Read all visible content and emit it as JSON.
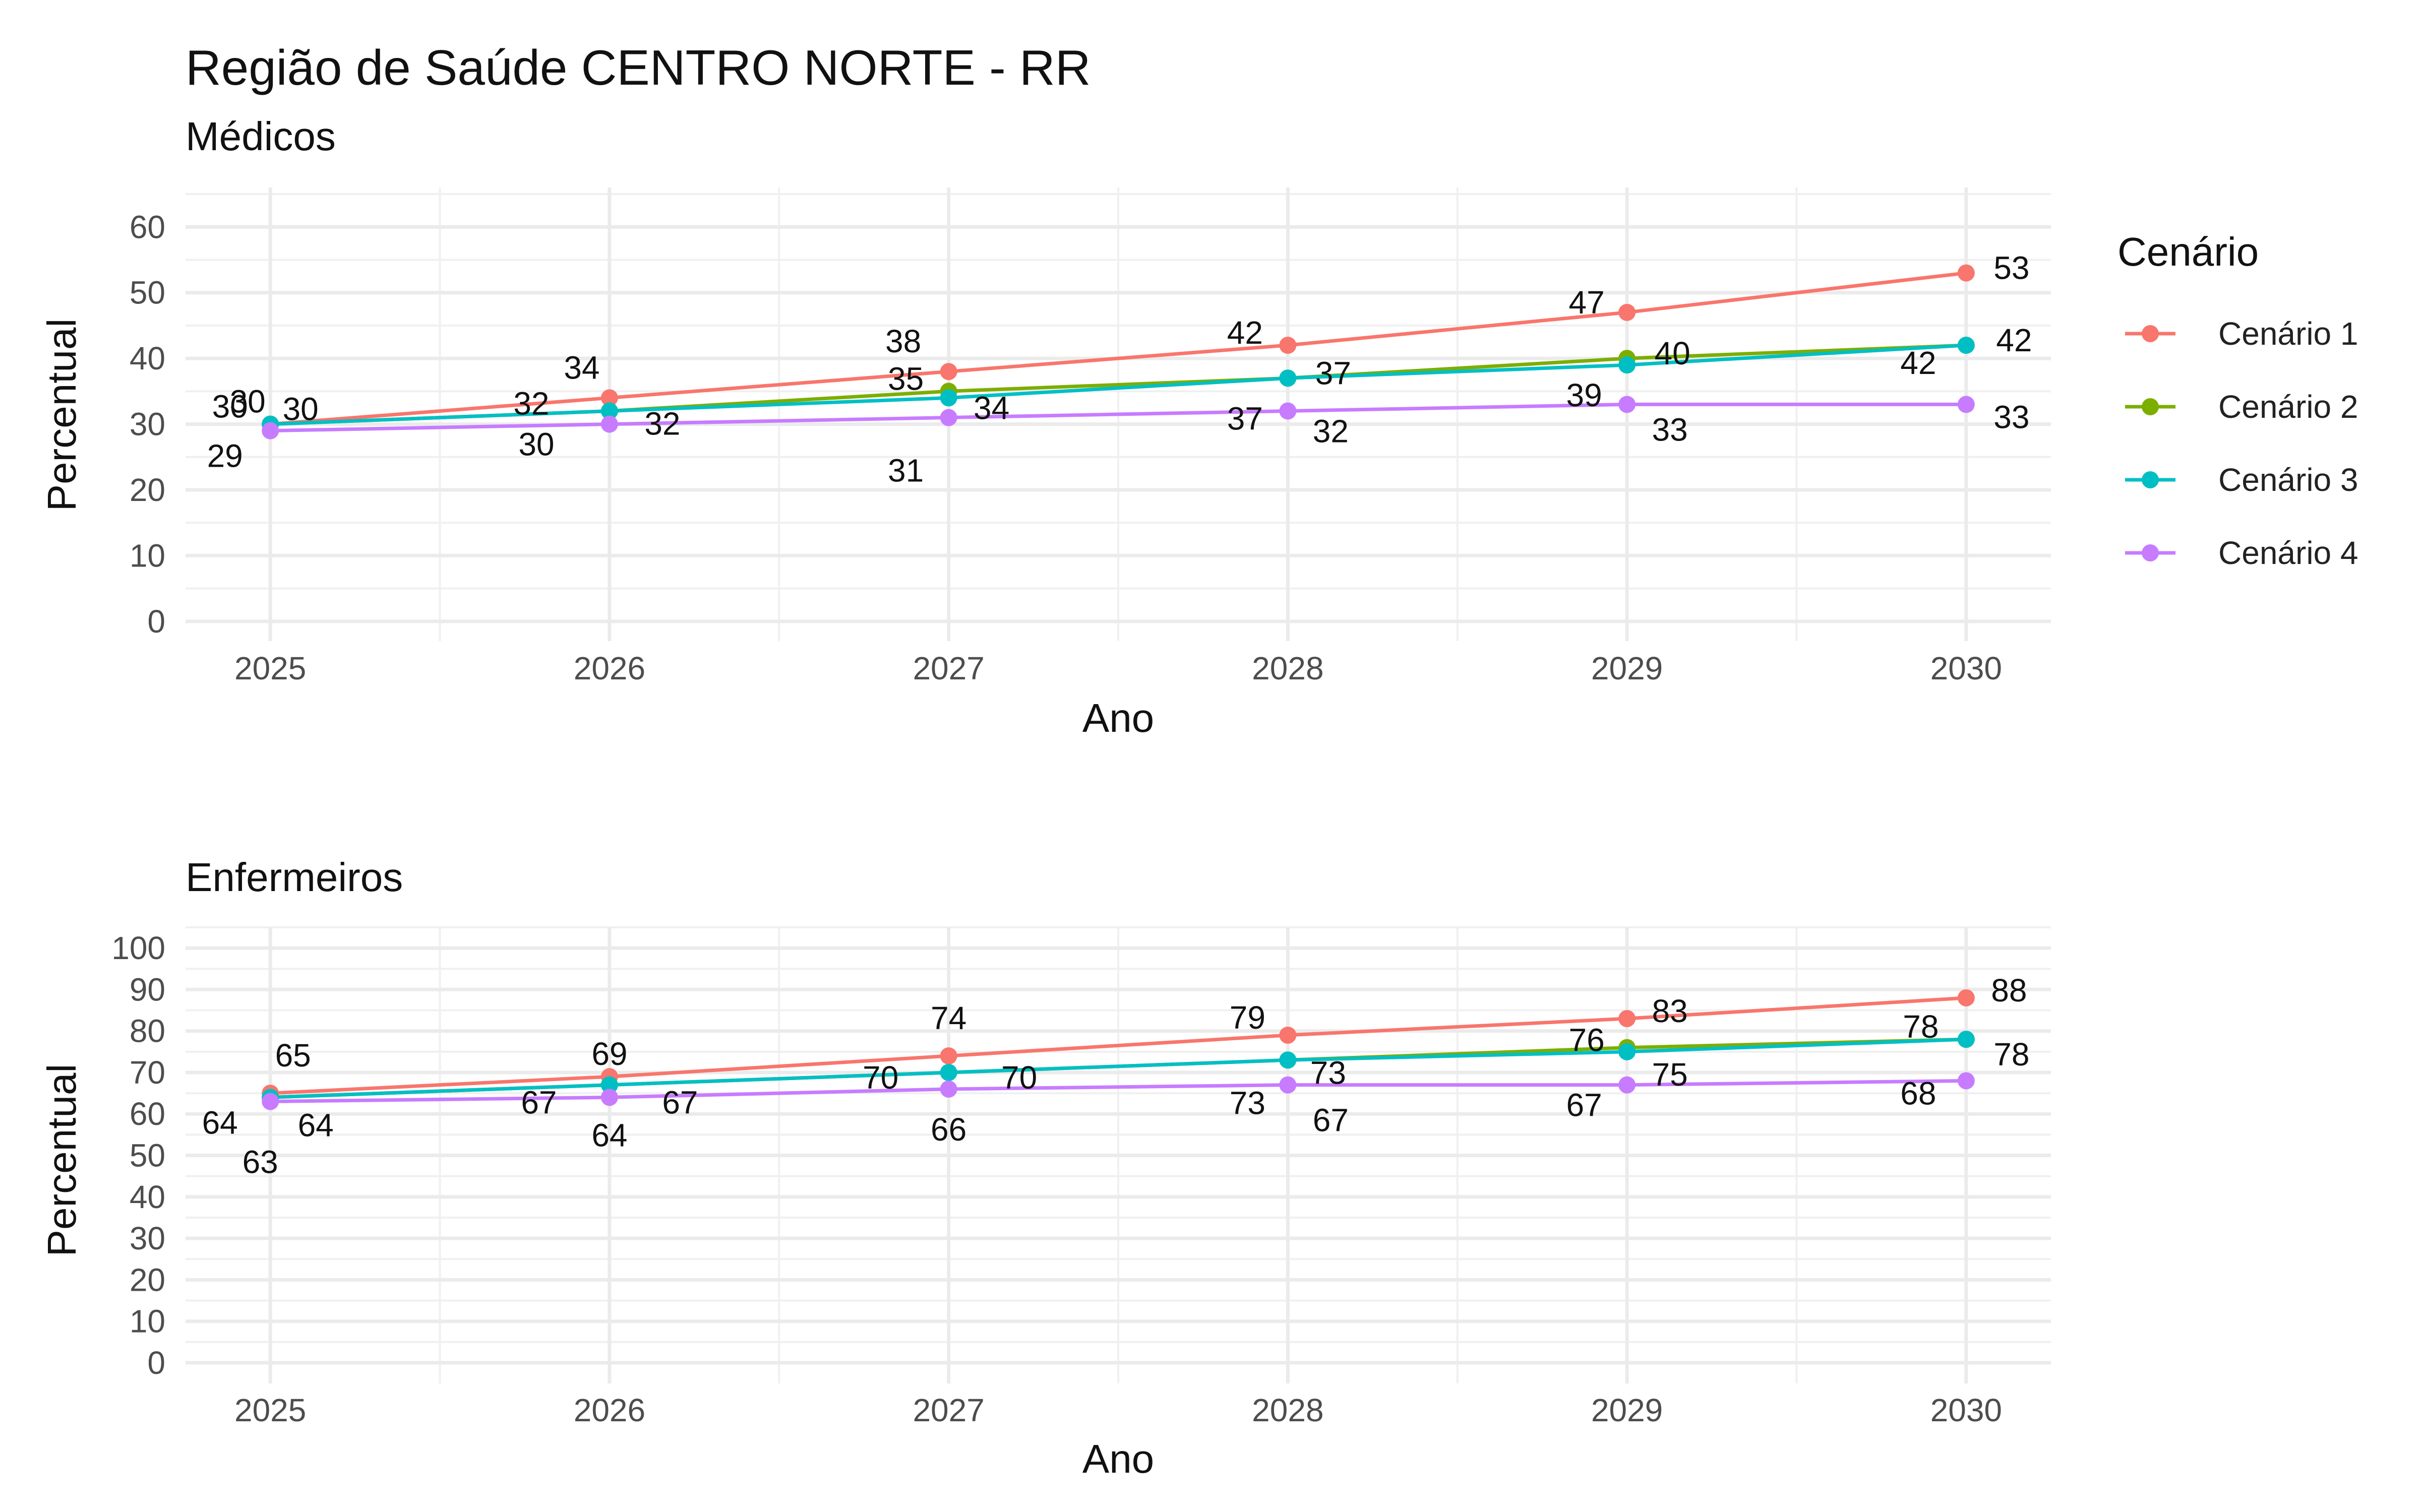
{
  "title": "Região de Saúde CENTRO NORTE - RR",
  "legend": {
    "title": "Cenário",
    "entries": [
      "Cenário 1",
      "Cenário 2",
      "Cenário 3",
      "Cenário 4"
    ],
    "colors": [
      "#F8766D",
      "#7CAE00",
      "#00BFC4",
      "#C77CFF"
    ]
  },
  "chart_data": [
    {
      "type": "line",
      "subtitle": "Médicos",
      "xlabel": "Ano",
      "ylabel": "Percentual",
      "x": [
        2025,
        2026,
        2027,
        2028,
        2029,
        2030
      ],
      "xlim": [
        2024.75,
        2030.25
      ],
      "ylim": [
        -3,
        66
      ],
      "yticks": [
        0,
        10,
        20,
        30,
        40,
        50,
        60
      ],
      "grid": true,
      "legend_position": "right",
      "series": [
        {
          "name": "Cenário 1",
          "color": "#F8766D",
          "values": [
            30,
            34,
            38,
            42,
            47,
            53
          ]
        },
        {
          "name": "Cenário 2",
          "color": "#7CAE00",
          "values": [
            30,
            32,
            35,
            37,
            40,
            42
          ]
        },
        {
          "name": "Cenário 3",
          "color": "#00BFC4",
          "values": [
            30,
            32,
            34,
            37,
            39,
            42
          ]
        },
        {
          "name": "Cenário 4",
          "color": "#C77CFF",
          "values": [
            29,
            30,
            31,
            32,
            33,
            33
          ]
        }
      ],
      "annotations": [
        [
          "30",
          "30",
          "34",
          "38",
          "42",
          "47",
          "53"
        ],
        [
          "29",
          "29",
          "32",
          "32",
          "30",
          "35",
          "34",
          "31",
          "37",
          "37",
          "32",
          "39",
          "40",
          "33",
          "42",
          "42",
          "33"
        ]
      ]
    },
    {
      "type": "line",
      "subtitle": "Enfermeiros",
      "xlabel": "Ano",
      "ylabel": "Percentual",
      "x": [
        2025,
        2026,
        2027,
        2028,
        2029,
        2030
      ],
      "xlim": [
        2024.75,
        2030.25
      ],
      "ylim": [
        -5,
        105
      ],
      "yticks": [
        0,
        10,
        20,
        30,
        40,
        50,
        60,
        70,
        80,
        90,
        100
      ],
      "grid": true,
      "legend_position": "right",
      "series": [
        {
          "name": "Cenário 1",
          "color": "#F8766D",
          "values": [
            65,
            69,
            74,
            79,
            83,
            88
          ]
        },
        {
          "name": "Cenário 2",
          "color": "#7CAE00",
          "values": [
            64,
            67,
            70,
            73,
            76,
            78
          ]
        },
        {
          "name": "Cenário 3",
          "color": "#00BFC4",
          "values": [
            64,
            67,
            70,
            73,
            75,
            78
          ]
        },
        {
          "name": "Cenário 4",
          "color": "#C77CFF",
          "values": [
            63,
            64,
            66,
            67,
            67,
            68
          ]
        }
      ]
    }
  ]
}
